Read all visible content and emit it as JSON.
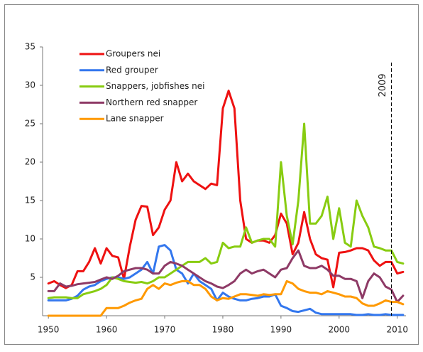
{
  "chart_data": {
    "type": "line",
    "x": [
      1950,
      1951,
      1952,
      1953,
      1954,
      1955,
      1956,
      1957,
      1958,
      1959,
      1960,
      1961,
      1962,
      1963,
      1964,
      1965,
      1966,
      1967,
      1968,
      1969,
      1970,
      1971,
      1972,
      1973,
      1974,
      1975,
      1976,
      1977,
      1978,
      1979,
      1980,
      1981,
      1982,
      1983,
      1984,
      1985,
      1986,
      1987,
      1988,
      1989,
      1990,
      1991,
      1992,
      1993,
      1994,
      1995,
      1996,
      1997,
      1998,
      1999,
      2000,
      2001,
      2002,
      2003,
      2004,
      2005,
      2006,
      2007,
      2008,
      2009,
      2010,
      2011
    ],
    "series": [
      {
        "name": "Groupers nei",
        "color": "#ee1111",
        "values": [
          4.2,
          4.5,
          4,
          3.6,
          4,
          5.8,
          5.8,
          7,
          8.8,
          6.8,
          8.8,
          7.8,
          7.6,
          4.8,
          9,
          12.5,
          14.3,
          14.2,
          10.5,
          11.5,
          13.8,
          15,
          20,
          17.5,
          18.5,
          17.5,
          17,
          16.5,
          17.2,
          17,
          27,
          29.3,
          27,
          15,
          10,
          9.5,
          9.8,
          9.8,
          9.5,
          10.5,
          13.3,
          12,
          8,
          9.5,
          13.5,
          10,
          8,
          7.5,
          7.3,
          3.7,
          8.2,
          8.3,
          8.5,
          8.8,
          8.8,
          8.5,
          7.2,
          6.5,
          7,
          7,
          5.5,
          5.7
        ]
      },
      {
        "name": "Red grouper",
        "color": "#3377ee",
        "values": [
          2,
          2,
          2,
          2,
          2.2,
          2.6,
          3.4,
          3.8,
          4,
          4.5,
          4.8,
          5,
          5,
          4.8,
          5,
          5.5,
          6,
          7,
          5.5,
          9,
          9.2,
          8.5,
          6,
          5.5,
          4.2,
          5.5,
          4.5,
          4,
          3.5,
          2,
          3,
          2.5,
          2.2,
          2,
          2,
          2.2,
          2.3,
          2.5,
          2.5,
          2.8,
          1.3,
          1,
          0.6,
          0.5,
          0.7,
          0.9,
          0.4,
          0.2,
          0.2,
          0.2,
          0.2,
          0.2,
          0.2,
          0.1,
          0.1,
          0.2,
          0.1,
          0.1,
          0.2,
          0.1,
          0.1,
          0.1
        ]
      },
      {
        "name": "Snappers, jobfishes nei",
        "color": "#88cc11",
        "values": [
          2.3,
          2.4,
          2.4,
          2.4,
          2.3,
          2.3,
          2.8,
          3,
          3.2,
          3.5,
          4,
          5,
          4.8,
          4.5,
          4.4,
          4.3,
          4.4,
          4.2,
          4.5,
          5,
          5,
          5.5,
          6,
          6.5,
          7,
          7,
          7,
          7.5,
          6.8,
          7,
          9.5,
          8.8,
          9,
          9,
          11.5,
          9.5,
          9.8,
          10,
          10,
          9,
          20,
          13,
          9.3,
          15,
          25,
          12,
          12,
          13,
          15.5,
          10,
          14,
          9.5,
          9,
          15,
          13,
          11.5,
          9,
          8.8,
          8.5,
          8.5,
          7,
          6.8
        ]
      },
      {
        "name": "Northern red snapper",
        "color": "#8e3a66",
        "values": [
          3.2,
          3.2,
          4.2,
          3.8,
          3.9,
          4.1,
          4.2,
          4.3,
          4.4,
          4.7,
          5,
          4.8,
          5.2,
          5.8,
          6,
          6.2,
          6.2,
          6,
          5.5,
          5.5,
          6.5,
          7,
          6.8,
          6.5,
          6,
          5.5,
          5,
          4.5,
          4.2,
          3.8,
          3.6,
          4,
          4.5,
          5.5,
          6,
          5.5,
          5.8,
          6,
          5.5,
          5,
          6,
          6.2,
          7.5,
          8.5,
          6.5,
          6.2,
          6.2,
          6.5,
          6,
          5.2,
          5.2,
          4.8,
          4.8,
          4.5,
          2.3,
          4.5,
          5.5,
          5,
          3.8,
          3.4,
          1.8,
          2.6
        ]
      },
      {
        "name": "Lane snapper",
        "color": "#ff9900",
        "values": [
          0,
          0,
          0,
          0,
          0,
          0,
          0,
          0,
          0,
          0,
          1,
          1,
          1,
          1.3,
          1.7,
          2,
          2.2,
          3.5,
          4,
          3.5,
          4.2,
          4,
          4.3,
          4.5,
          4.5,
          4,
          4,
          3.5,
          2.5,
          2,
          2.3,
          2.2,
          2.5,
          2.8,
          2.8,
          2.7,
          2.6,
          2.8,
          2.7,
          2.8,
          2.8,
          4.5,
          4.2,
          3.5,
          3.2,
          3,
          3,
          2.8,
          3.2,
          3,
          2.8,
          2.5,
          2.5,
          2.3,
          1.6,
          1.3,
          1.3,
          1.6,
          2,
          1.8,
          1.8,
          1.5
        ]
      }
    ],
    "xlim": [
      1949,
      2011.5
    ],
    "xticks": [
      1950,
      1960,
      1970,
      1980,
      1990,
      2000,
      2010
    ],
    "ylim": [
      0,
      35
    ],
    "yticks": [
      5,
      10,
      15,
      20,
      25,
      30,
      35
    ],
    "annotation": {
      "text": "2009",
      "x": 2009
    },
    "legend": "top-left"
  }
}
